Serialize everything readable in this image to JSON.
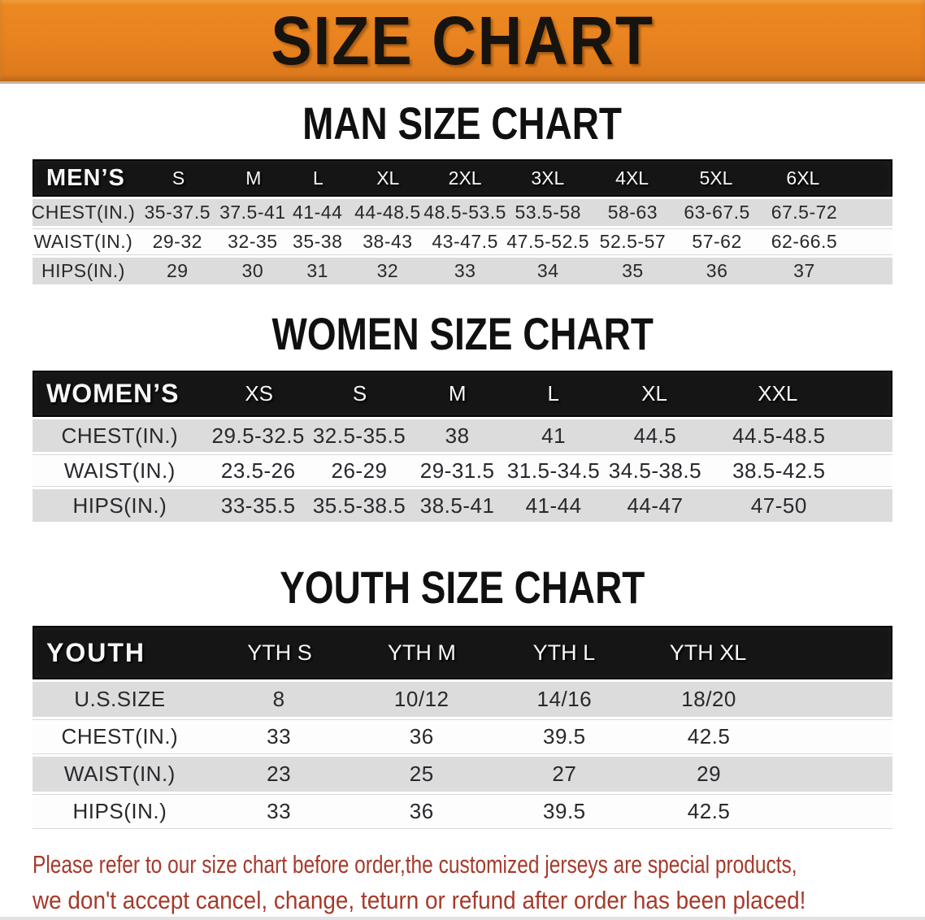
{
  "banner": {
    "title": "SIZE CHART",
    "bg_color": "#e8821f",
    "text_color": "#17130e"
  },
  "sections": [
    {
      "id": "men",
      "title": "MAN SIZE CHART",
      "header_label": "MEN’S",
      "columns": [
        "S",
        "M",
        "L",
        "XL",
        "2XL",
        "3XL",
        "4XL",
        "5XL",
        "6XL"
      ],
      "rows": [
        {
          "label": "CHEST(IN.)",
          "values": [
            "35-37.5",
            "37.5-41",
            "41-44",
            "44-48.5",
            "48.5-53.5",
            "53.5-58",
            "58-63",
            "63-67.5",
            "67.5-72"
          ]
        },
        {
          "label": "WAIST(IN.)",
          "values": [
            "29-32",
            "32-35",
            "35-38",
            "38-43",
            "43-47.5",
            "47.5-52.5",
            "52.5-57",
            "57-62",
            "62-66.5"
          ]
        },
        {
          "label": "HIPS(IN.)",
          "values": [
            "29",
            "30",
            "31",
            "32",
            "33",
            "34",
            "35",
            "36",
            "37"
          ]
        }
      ]
    },
    {
      "id": "women",
      "title": "WOMEN SIZE CHART",
      "header_label": "WOMEN’S",
      "columns": [
        "XS",
        "S",
        "M",
        "L",
        "XL",
        "XXL"
      ],
      "rows": [
        {
          "label": "CHEST(IN.)",
          "values": [
            "29.5-32.5",
            "32.5-35.5",
            "38",
            "41",
            "44.5",
            "44.5-48.5"
          ]
        },
        {
          "label": "WAIST(IN.)",
          "values": [
            "23.5-26",
            "26-29",
            "29-31.5",
            "31.5-34.5",
            "34.5-38.5",
            "38.5-42.5"
          ]
        },
        {
          "label": "HIPS(IN.)",
          "values": [
            "33-35.5",
            "35.5-38.5",
            "38.5-41",
            "41-44",
            "44-47",
            "47-50"
          ]
        }
      ]
    },
    {
      "id": "youth",
      "title": "YOUTH SIZE CHART",
      "header_label": "YOUTH",
      "columns": [
        "YTH S",
        "YTH M",
        "YTH L",
        "YTH XL"
      ],
      "rows": [
        {
          "label": "U.S.SIZE",
          "values": [
            "8",
            "10/12",
            "14/16",
            "18/20"
          ]
        },
        {
          "label": "CHEST(IN.)",
          "values": [
            "33",
            "36",
            "39.5",
            "42.5"
          ]
        },
        {
          "label": "WAIST(IN.)",
          "values": [
            "23",
            "25",
            "27",
            "29"
          ]
        },
        {
          "label": "HIPS(IN.)",
          "values": [
            "33",
            "36",
            "39.5",
            "42.5"
          ]
        }
      ]
    }
  ],
  "notice": {
    "text_color": "#a63a2b",
    "lines": [
      "Please refer to our size chart before order,the customized jerseys are special products,",
      "we don't accept cancel, change, teturn or refund after order has been placed!"
    ]
  },
  "colors": {
    "banner_orange": "#e8821f",
    "header_black": "#151515",
    "row_gray": "#dcdcdc",
    "row_white": "#fdfdfd",
    "table_text": "#28282d"
  }
}
